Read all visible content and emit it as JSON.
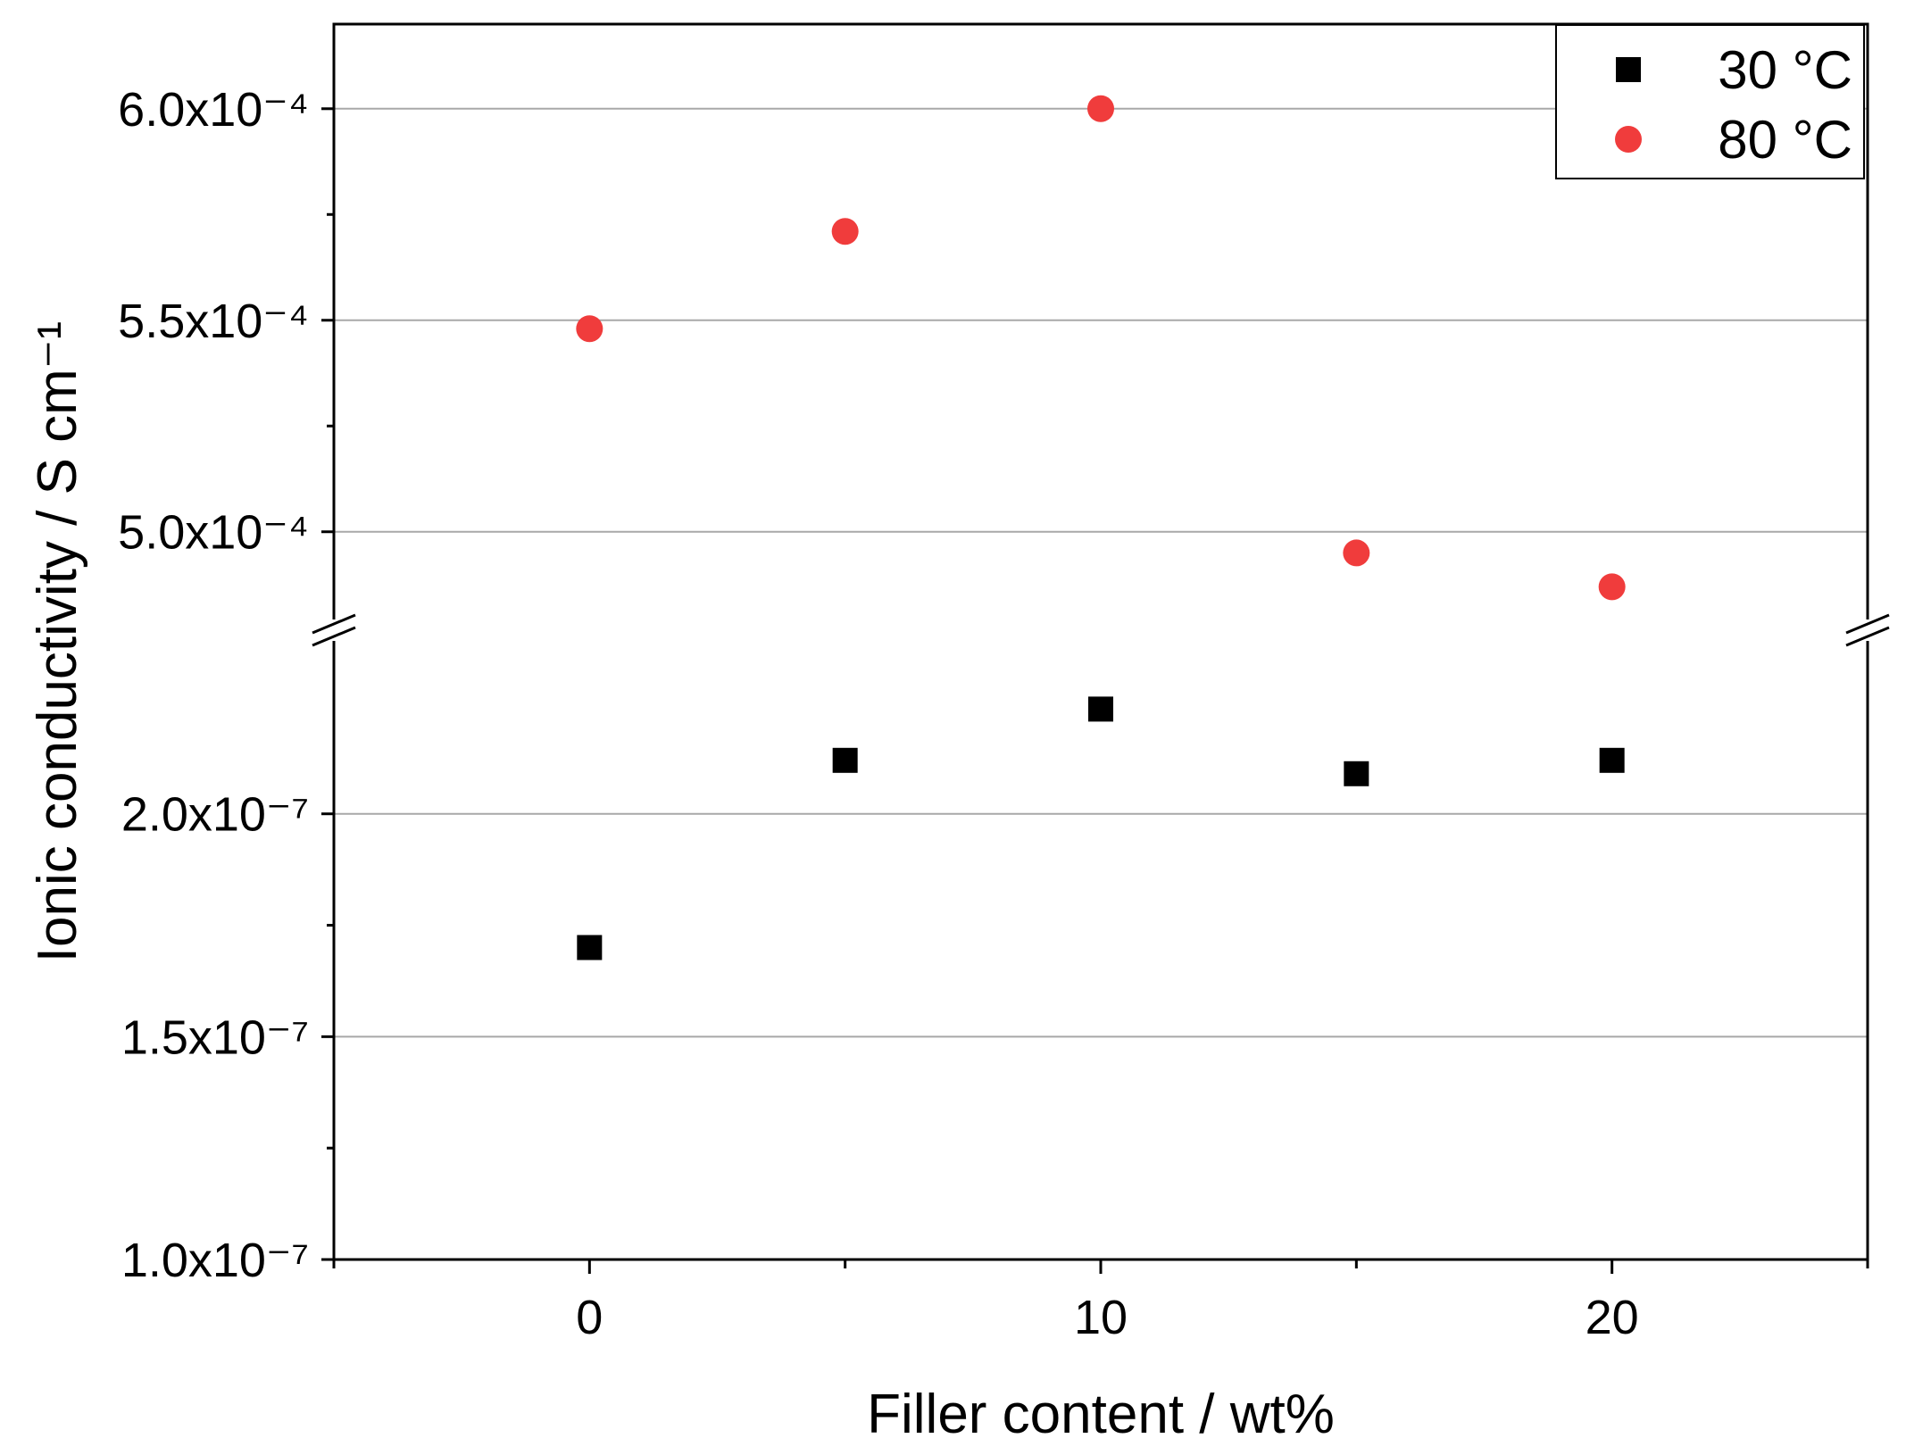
{
  "chart_data": {
    "type": "scatter",
    "title": "",
    "xlabel": "Filler content / wt%",
    "ylabel": "Ionic conductivity / S cm⁻¹",
    "xlim": [
      -5,
      25
    ],
    "x_ticks": [
      {
        "value": 0,
        "label": "0"
      },
      {
        "value": 10,
        "label": "10"
      },
      {
        "value": 20,
        "label": "20"
      }
    ],
    "x_minor_ticks": [
      -5,
      5,
      15,
      25
    ],
    "y_axis_break": true,
    "y_segments": [
      {
        "name": "upper",
        "ylim": [
          0.000478,
          0.00062
        ],
        "ticks": [
          {
            "value": 0.0005,
            "label": "5.0x10⁻⁴"
          },
          {
            "value": 0.00055,
            "label": "5.5x10⁻⁴"
          },
          {
            "value": 0.0006,
            "label": "6.0x10⁻⁴"
          }
        ],
        "minor_ticks": [
          0.000525,
          0.000575
        ]
      },
      {
        "name": "lower",
        "ylim": [
          1e-07,
          2.4e-07
        ],
        "ticks": [
          {
            "value": 1e-07,
            "label": "1.0x10⁻⁷"
          },
          {
            "value": 1.5e-07,
            "label": "1.5x10⁻⁷"
          },
          {
            "value": 2e-07,
            "label": "2.0x10⁻⁷"
          }
        ],
        "minor_ticks": [
          1.25e-07,
          1.75e-07
        ]
      }
    ],
    "grid": true,
    "legend_position": "top-right",
    "series": [
      {
        "name": "30 °C",
        "marker": "square",
        "color": "#000000",
        "segment": "lower",
        "x": [
          0,
          5,
          10,
          15,
          20
        ],
        "y": [
          1.7e-07,
          2.12e-07,
          2.235e-07,
          2.09e-07,
          2.12e-07
        ]
      },
      {
        "name": "80 °C",
        "marker": "circle",
        "color": "#f03c3c",
        "segment": "upper",
        "x": [
          0,
          5,
          10,
          15,
          20
        ],
        "y": [
          0.000548,
          0.000571,
          0.0006,
          0.000495,
          0.000487
        ]
      }
    ]
  }
}
